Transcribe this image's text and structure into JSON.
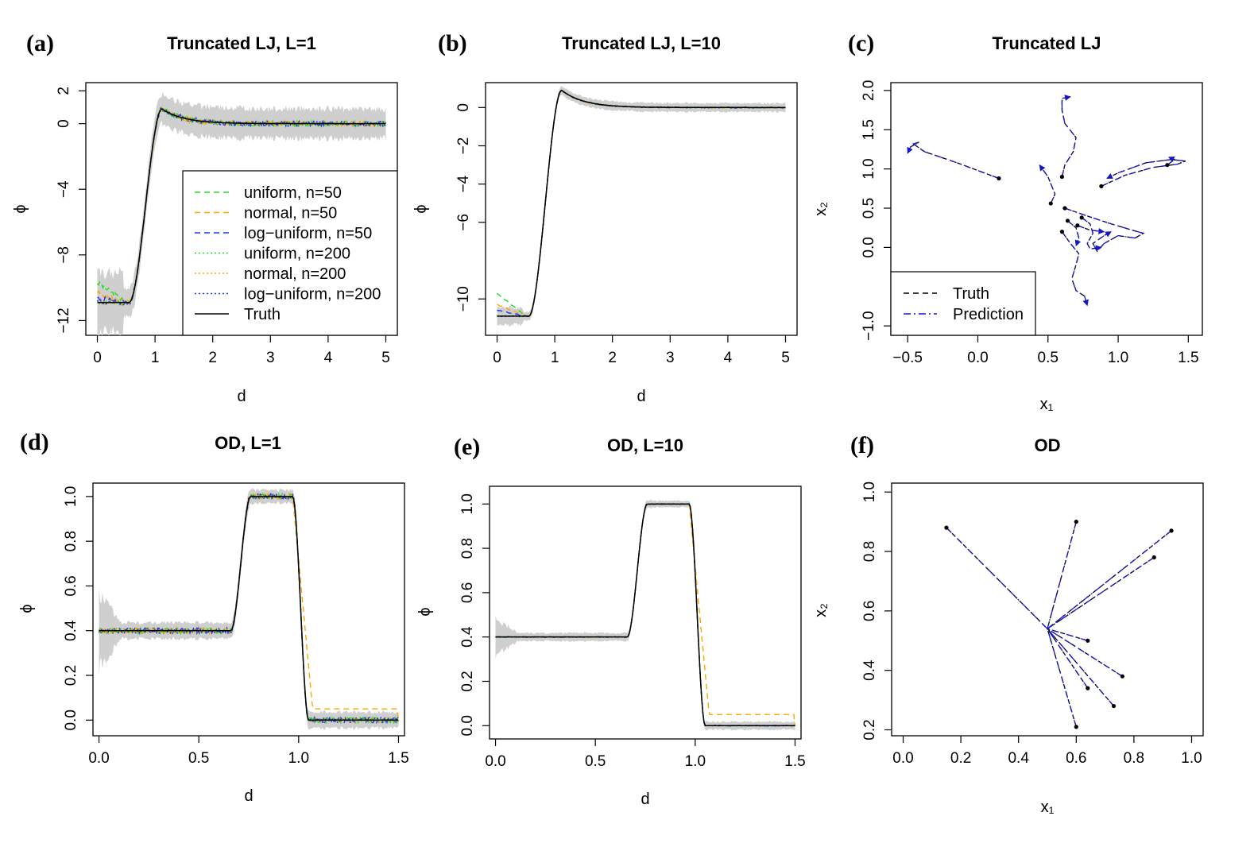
{
  "figure": {
    "colors": {
      "uniform": "#22dd22",
      "normal": "#ffa500",
      "loguniform": "#2233ee",
      "truth": "#000000",
      "band": "#cfcfcf",
      "prediction": "#1515c8"
    }
  },
  "chart_data": [
    {
      "id": "a",
      "tag": "(a)",
      "type": "line",
      "title": "Truncated LJ, L=1",
      "xlabel": "d",
      "ylabel": "ϕ",
      "xlim": [
        -0.2,
        5.2
      ],
      "ylim": [
        -12.9,
        2.5
      ],
      "xticks": [
        0,
        1,
        2,
        3,
        4,
        5
      ],
      "xtick_labels": [
        "0",
        "1",
        "2",
        "3",
        "4",
        "5"
      ],
      "yticks": [
        -12,
        -8,
        -4,
        0,
        2
      ],
      "ytick_labels": [
        "−12",
        "−8",
        "−4",
        "0",
        "2"
      ],
      "function": "lj",
      "noise": 0.15,
      "band_width": 1.0,
      "legend": {
        "position": "right-middle",
        "entries": [
          {
            "label": "uniform, n=50",
            "series": "uniform",
            "style": "dashed"
          },
          {
            "label": "normal, n=50",
            "series": "normal",
            "style": "dashed"
          },
          {
            "label": "log−uniform, n=50",
            "series": "loguniform",
            "style": "dashed"
          },
          {
            "label": "uniform, n=200",
            "series": "uniform",
            "style": "dotted"
          },
          {
            "label": "normal, n=200",
            "series": "normal",
            "style": "dotted"
          },
          {
            "label": "log−uniform, n=200",
            "series": "loguniform",
            "style": "dotted"
          },
          {
            "label": "Truth",
            "series": "truth",
            "style": "solid"
          }
        ]
      }
    },
    {
      "id": "b",
      "tag": "(b)",
      "type": "line",
      "title": "Truncated LJ, L=10",
      "xlabel": "d",
      "ylabel": "ϕ",
      "xlim": [
        -0.2,
        5.2
      ],
      "ylim": [
        -11.9,
        1.3
      ],
      "xticks": [
        0,
        1,
        2,
        3,
        4,
        5
      ],
      "xtick_labels": [
        "0",
        "1",
        "2",
        "3",
        "4",
        "5"
      ],
      "yticks": [
        -10,
        -6,
        -4,
        -2,
        0
      ],
      "ytick_labels": [
        "−10",
        "−6",
        "−4",
        "−2",
        "0"
      ],
      "function": "lj",
      "noise": 0.03,
      "band_width": 0.25,
      "legend": null
    },
    {
      "id": "c",
      "tag": "(c)",
      "type": "trajectory",
      "title": "Truncated LJ",
      "xlabel": "x₁",
      "ylabel": "x₂",
      "xlim": [
        -0.62,
        1.6
      ],
      "ylim": [
        -1.12,
        2.1
      ],
      "xticks": [
        -0.5,
        0.0,
        0.5,
        1.0,
        1.5
      ],
      "xtick_labels": [
        "−0.5",
        "0.0",
        "0.5",
        "1.0",
        "1.5"
      ],
      "yticks": [
        -1.0,
        0.0,
        0.5,
        1.0,
        1.5,
        2.0
      ],
      "ytick_labels": [
        "−1.0",
        "0.0",
        "0.5",
        "1.0",
        "1.5",
        "2.0"
      ],
      "legend": {
        "position": "bottom-left",
        "entries": [
          {
            "label": "Truth",
            "series": "truth",
            "style": "dashed"
          },
          {
            "label": "Prediction",
            "series": "prediction",
            "style": "dotdash"
          }
        ]
      },
      "trajectories": [
        [
          [
            0.15,
            0.88
          ],
          [
            -0.15,
            1.08
          ],
          [
            -0.38,
            1.22
          ],
          [
            -0.46,
            1.32
          ],
          [
            -0.42,
            1.34
          ],
          [
            -0.48,
            1.28
          ],
          [
            -0.5,
            1.2
          ]
        ],
        [
          [
            0.6,
            0.9
          ],
          [
            0.62,
            1.05
          ],
          [
            0.68,
            1.22
          ],
          [
            0.7,
            1.4
          ],
          [
            0.62,
            1.58
          ],
          [
            0.6,
            1.75
          ],
          [
            0.6,
            1.9
          ],
          [
            0.66,
            1.92
          ]
        ],
        [
          [
            0.88,
            0.78
          ],
          [
            1.05,
            0.92
          ],
          [
            1.25,
            1.02
          ],
          [
            1.42,
            1.06
          ],
          [
            1.48,
            1.1
          ],
          [
            1.38,
            1.12
          ],
          [
            1.2,
            1.08
          ],
          [
            1.0,
            0.95
          ],
          [
            0.92,
            0.88
          ]
        ],
        [
          [
            1.35,
            1.05
          ],
          [
            1.4,
            1.12
          ],
          [
            1.36,
            1.15
          ]
        ],
        [
          [
            0.52,
            0.56
          ],
          [
            0.55,
            0.68
          ],
          [
            0.5,
            0.9
          ],
          [
            0.44,
            1.05
          ]
        ],
        [
          [
            0.62,
            0.5
          ],
          [
            0.78,
            0.4
          ],
          [
            0.95,
            0.3
          ],
          [
            1.1,
            0.22
          ],
          [
            1.18,
            0.18
          ],
          [
            1.12,
            0.12
          ],
          [
            1.0,
            0.15
          ],
          [
            0.9,
            0.05
          ],
          [
            0.85,
            -0.05
          ],
          [
            0.82,
            0.05
          ],
          [
            0.9,
            0.15
          ],
          [
            0.95,
            0.2
          ]
        ],
        [
          [
            0.74,
            0.38
          ],
          [
            0.8,
            0.3
          ],
          [
            0.82,
            0.18
          ],
          [
            0.78,
            0.05
          ],
          [
            0.8,
            -0.02
          ],
          [
            0.88,
            0.0
          ]
        ],
        [
          [
            0.71,
            0.28
          ],
          [
            0.8,
            0.22
          ],
          [
            0.9,
            0.2
          ]
        ],
        [
          [
            0.64,
            0.34
          ],
          [
            0.7,
            0.25
          ],
          [
            0.72,
            0.12
          ],
          [
            0.7,
            0.02
          ]
        ],
        [
          [
            0.6,
            0.2
          ],
          [
            0.66,
            0.05
          ],
          [
            0.72,
            -0.08
          ],
          [
            0.7,
            -0.22
          ],
          [
            0.67,
            -0.4
          ],
          [
            0.7,
            -0.55
          ],
          [
            0.76,
            -0.62
          ],
          [
            0.78,
            -0.74
          ]
        ]
      ]
    },
    {
      "id": "d",
      "tag": "(d)",
      "type": "line",
      "title": "OD, L=1",
      "xlabel": "d",
      "ylabel": "ϕ",
      "xlim": [
        -0.03,
        1.53
      ],
      "ylim": [
        -0.07,
        1.06
      ],
      "xticks": [
        0.0,
        0.5,
        1.0,
        1.5
      ],
      "xtick_labels": [
        "0.0",
        "0.5",
        "1.0",
        "1.5"
      ],
      "yticks": [
        0.0,
        0.2,
        0.4,
        0.6,
        0.8,
        1.0
      ],
      "ytick_labels": [
        "0.0",
        "0.2",
        "0.4",
        "0.6",
        "0.8",
        "1.0"
      ],
      "function": "od",
      "noise": 0.012,
      "band_width": 0.04,
      "legend": null
    },
    {
      "id": "e",
      "tag": "(e)",
      "type": "line",
      "title": "OD, L=10",
      "xlabel": "d",
      "ylabel": "ϕ",
      "xlim": [
        -0.03,
        1.53
      ],
      "ylim": [
        -0.06,
        1.08
      ],
      "xticks": [
        0.0,
        0.5,
        1.0,
        1.5
      ],
      "xtick_labels": [
        "0.0",
        "0.5",
        "1.0",
        "1.5"
      ],
      "yticks": [
        0.0,
        0.2,
        0.4,
        0.6,
        0.8,
        1.0
      ],
      "ytick_labels": [
        "0.0",
        "0.2",
        "0.4",
        "0.6",
        "0.8",
        "1.0"
      ],
      "function": "od",
      "noise": 0.002,
      "band_width": 0.02,
      "legend": null
    },
    {
      "id": "f",
      "tag": "(f)",
      "type": "trajectory",
      "title": "OD",
      "xlabel": "x₁",
      "ylabel": "x₂",
      "xlim": [
        -0.04,
        1.04
      ],
      "ylim": [
        0.18,
        1.03
      ],
      "xticks": [
        0.0,
        0.2,
        0.4,
        0.6,
        0.8,
        1.0
      ],
      "xtick_labels": [
        "0.0",
        "0.2",
        "0.4",
        "0.6",
        "0.8",
        "1.0"
      ],
      "yticks": [
        0.2,
        0.4,
        0.6,
        0.8,
        1.0
      ],
      "ytick_labels": [
        "0.2",
        "0.4",
        "0.6",
        "0.8",
        "1.0"
      ],
      "legend": null,
      "center": [
        0.5,
        0.54
      ],
      "start_points": [
        [
          0.15,
          0.88
        ],
        [
          0.6,
          0.9
        ],
        [
          0.93,
          0.87
        ],
        [
          0.87,
          0.78
        ],
        [
          0.64,
          0.5
        ],
        [
          0.76,
          0.38
        ],
        [
          0.64,
          0.34
        ],
        [
          0.73,
          0.28
        ],
        [
          0.6,
          0.21
        ]
      ]
    }
  ]
}
